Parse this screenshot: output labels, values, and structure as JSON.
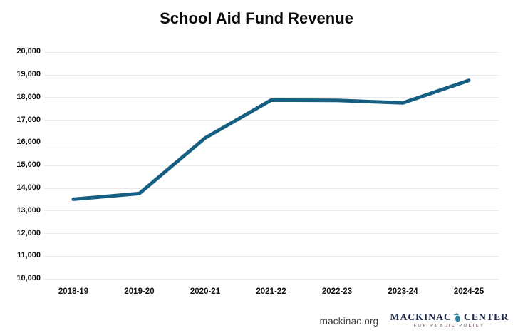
{
  "title": "School Aid Fund Revenue",
  "chart_data": {
    "type": "line",
    "title": "School Aid Fund Revenue",
    "categories": [
      "2018-19",
      "2019-20",
      "2020-21",
      "2021-22",
      "2022-23",
      "2023-24",
      "2024-25"
    ],
    "series": [
      {
        "name": "School Aid Fund Revenue",
        "values": [
          13500,
          13750,
          16200,
          17870,
          17860,
          17750,
          18740
        ]
      }
    ],
    "xlabel": "",
    "ylabel": "",
    "ylim": [
      10000,
      20000
    ],
    "ytick_step": 1000,
    "ytick_labels": [
      "20,000",
      "19,000",
      "18,000",
      "17,000",
      "16,000",
      "15,000",
      "14,000",
      "13,000",
      "12,000",
      "11,000",
      "10,000"
    ],
    "grid": true,
    "legend_position": "none",
    "line_color": "#175f82",
    "grid_color": "#ebebeb"
  },
  "footer": {
    "website": "mackinac.org",
    "logo": {
      "name_left": "MACKINAC",
      "name_right": "CENTER",
      "tagline": "FOR PUBLIC POLICY",
      "text_color": "#1e2b4d",
      "michigan_color": "#2b849c",
      "tagline_color": "#8c7676"
    }
  },
  "colors": {
    "background": "#ffffff",
    "axis_text": "#111111"
  }
}
